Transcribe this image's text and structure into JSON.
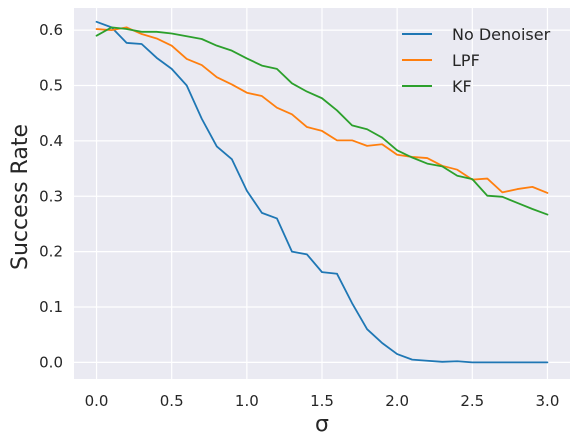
{
  "chart_data": {
    "type": "line",
    "xlabel": "σ",
    "ylabel": "Success Rate",
    "xlim": [
      -0.15,
      3.15
    ],
    "ylim": [
      -0.03,
      0.64
    ],
    "xticks": [
      "0.0",
      "0.5",
      "1.0",
      "1.5",
      "2.0",
      "2.5",
      "3.0"
    ],
    "yticks": [
      "0.0",
      "0.1",
      "0.2",
      "0.3",
      "0.4",
      "0.5",
      "0.6"
    ],
    "grid": true,
    "legend_position": "top-right",
    "x": [
      0.0,
      0.1,
      0.2,
      0.3,
      0.4,
      0.5,
      0.6,
      0.7,
      0.8,
      0.9,
      1.0,
      1.1,
      1.2,
      1.3,
      1.4,
      1.5,
      1.6,
      1.7,
      1.8,
      1.9,
      2.0,
      2.1,
      2.2,
      2.3,
      2.4,
      2.5,
      2.6,
      2.7,
      2.8,
      2.9,
      3.0
    ],
    "series": [
      {
        "name": "No Denoiser",
        "color": "#1f77b4",
        "values": [
          0.615,
          0.605,
          0.577,
          0.575,
          0.55,
          0.53,
          0.5,
          0.44,
          0.39,
          0.367,
          0.31,
          0.27,
          0.26,
          0.2,
          0.195,
          0.163,
          0.16,
          0.107,
          0.06,
          0.035,
          0.015,
          0.005,
          0.003,
          0.001,
          0.002,
          0.0,
          0.0,
          0.0,
          0.0,
          0.0,
          0.0
        ]
      },
      {
        "name": "LPF",
        "color": "#ff7f0e",
        "values": [
          0.602,
          0.6,
          0.605,
          0.593,
          0.585,
          0.572,
          0.548,
          0.537,
          0.515,
          0.502,
          0.487,
          0.481,
          0.46,
          0.448,
          0.425,
          0.418,
          0.401,
          0.401,
          0.391,
          0.394,
          0.375,
          0.371,
          0.369,
          0.355,
          0.348,
          0.33,
          0.332,
          0.307,
          0.313,
          0.317,
          0.306
        ]
      },
      {
        "name": "KF",
        "color": "#2ca02c",
        "values": [
          0.59,
          0.605,
          0.602,
          0.597,
          0.597,
          0.594,
          0.589,
          0.584,
          0.572,
          0.563,
          0.549,
          0.536,
          0.53,
          0.504,
          0.489,
          0.477,
          0.455,
          0.428,
          0.421,
          0.406,
          0.383,
          0.37,
          0.359,
          0.354,
          0.337,
          0.331,
          0.301,
          0.299,
          0.288,
          0.277,
          0.267
        ]
      }
    ]
  }
}
